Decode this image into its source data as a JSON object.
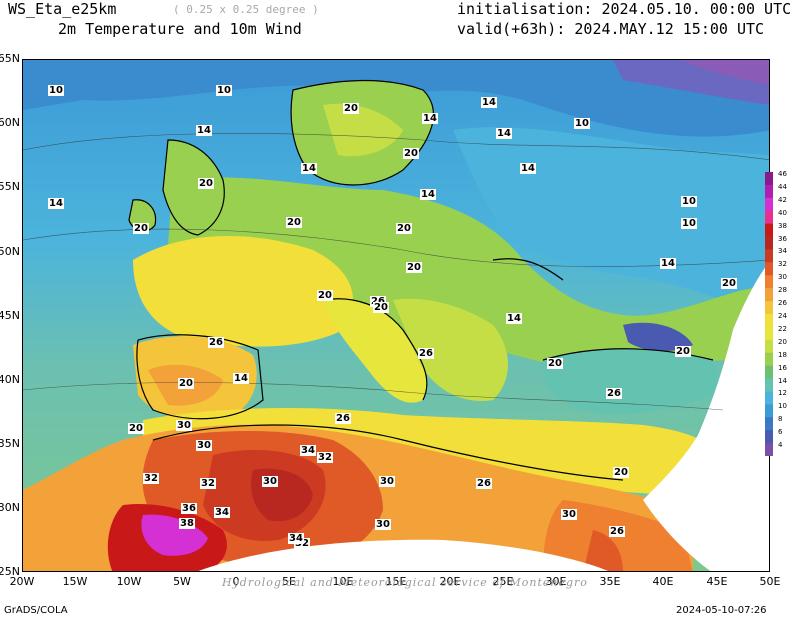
{
  "header": {
    "model": "WS_Eta_e25km",
    "resolution": "( 0.25 x 0.25 degree )",
    "field": "2m Temperature and 10m Wind",
    "init": "initialisation: 2024.05.10. 00:00 UTC",
    "valid": "valid(+63h): 2024.MAY.12 15:00 UTC"
  },
  "axes": {
    "lat_labels": [
      "65N",
      "60N",
      "55N",
      "50N",
      "45N",
      "40N",
      "35N",
      "30N",
      "25N"
    ],
    "lon_labels": [
      "20W",
      "15W",
      "10W",
      "5W",
      "0",
      "5E",
      "10E",
      "15E",
      "20E",
      "25E",
      "30E",
      "35E",
      "40E",
      "45E",
      "50E"
    ]
  },
  "contour_labels": [
    "10",
    "10",
    "14",
    "14",
    "20",
    "14",
    "20",
    "20",
    "14",
    "10",
    "14",
    "14",
    "10",
    "14",
    "14",
    "10",
    "20",
    "20",
    "20",
    "14",
    "20",
    "20",
    "20",
    "26",
    "20",
    "14",
    "20",
    "26",
    "26",
    "20",
    "14",
    "20",
    "26",
    "20",
    "26",
    "30",
    "30",
    "32",
    "34",
    "32",
    "30",
    "32",
    "30",
    "26",
    "36",
    "32",
    "38",
    "34",
    "34",
    "30",
    "30",
    "26",
    "20"
  ],
  "colorbar": {
    "labels": [
      "46",
      "44",
      "42",
      "40",
      "38",
      "36",
      "34",
      "32",
      "30",
      "28",
      "26",
      "24",
      "22",
      "20",
      "18",
      "16",
      "14",
      "12",
      "10",
      "8",
      "6",
      "4"
    ],
    "colors": [
      "#8a1a8a",
      "#b020b0",
      "#d430d4",
      "#e8308c",
      "#c81818",
      "#b82820",
      "#cc3a22",
      "#e05a28",
      "#ee8030",
      "#f3a23a",
      "#f4c43a",
      "#f2df3a",
      "#e6e63c",
      "#c6de46",
      "#9ad050",
      "#6cc070",
      "#64c2b0",
      "#4cb4dc",
      "#3c9ad6",
      "#3a78c8",
      "#4a5ab0",
      "#7a50a8"
    ]
  },
  "footer": {
    "left": "GrADS/COLA",
    "right": "2024-05-10-07:26",
    "credit": "Hydrological and Meteorological service of Montenegro"
  }
}
